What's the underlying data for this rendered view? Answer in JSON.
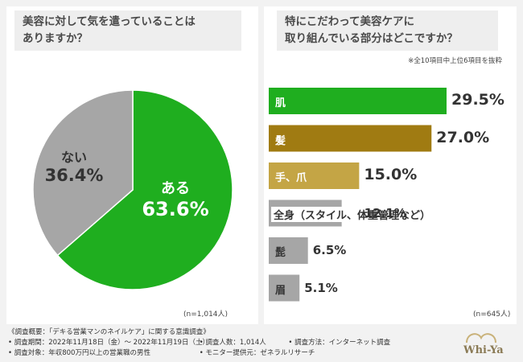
{
  "left": {
    "question_lines": [
      "美容に対して気を遣っていることは",
      "ありますか？"
    ],
    "n_note": "(n=1,014人)"
  },
  "right": {
    "question_lines": [
      "特にこだわって美容ケアに",
      "取り組んでいる部分はどこですか？"
    ],
    "note": "※全10項目中上位6項目を抜粋",
    "n_note": "(n=645人)"
  },
  "chart_data": [
    {
      "type": "pie",
      "title": "美容に対して気を遣っていることはありますか？",
      "slices": [
        {
          "label": "ある",
          "value": 63.6,
          "display": "63.6%",
          "color": "#1fae1f"
        },
        {
          "label": "ない",
          "value": 36.4,
          "display": "36.4%",
          "color": "#a6a6a6"
        }
      ]
    },
    {
      "type": "bar",
      "orientation": "horizontal",
      "title": "特にこだわって美容ケアに取り組んでいる部分はどこですか？",
      "categories": [
        "肌",
        "髪",
        "手、爪",
        "全身（スタイル、体重管理など）",
        "髭",
        "眉"
      ],
      "values": [
        29.5,
        27.0,
        15.0,
        12.1,
        6.5,
        5.1
      ],
      "display": [
        "29.5%",
        "27.0%",
        "15.0%",
        "12.1%",
        "6.5%",
        "5.1%"
      ],
      "colors": [
        "#1fae1f",
        "#a07b12",
        "#c4a545",
        "#a6a6a6",
        "#a6a6a6",
        "#a6a6a6"
      ]
    }
  ],
  "footer": {
    "overview": "《調査概要：「デキる営業マンのネイルケア」に関する意識調査》",
    "period": "• 調査期間：2022年11月18日（金）～ 2022年11月19日（土）",
    "count": "• 調査人数：1,014人",
    "method": "• 調査方法：インターネット調査",
    "target": "• 調査対象：年収800万円以上の営業職の男性",
    "provider": "• モニター提供元：ゼネラルリサーチ"
  },
  "logo": {
    "text": "Whi-Ya"
  }
}
